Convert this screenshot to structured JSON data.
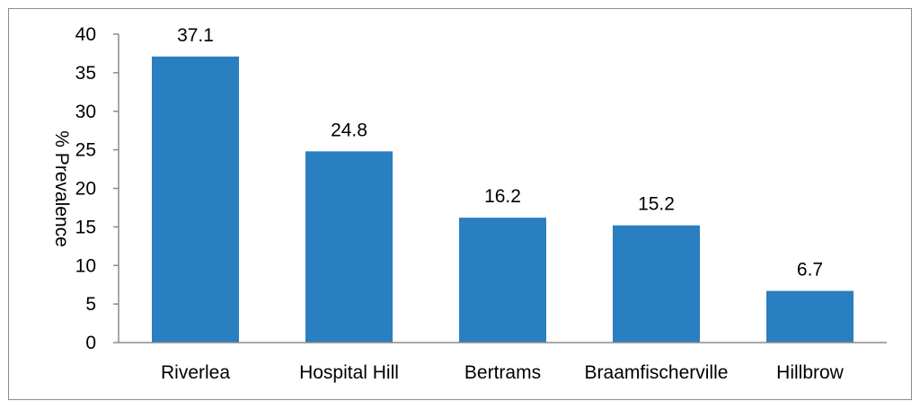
{
  "chart_data": {
    "type": "bar",
    "title": "",
    "xlabel": "",
    "ylabel": "% Prevalence",
    "categories": [
      "Riverlea",
      "Hospital Hill",
      "Bertrams",
      "Braamfischerville",
      "Hillbrow"
    ],
    "values": [
      37.1,
      24.8,
      16.2,
      15.2,
      6.7
    ],
    "data_labels": [
      "37.1",
      "24.8",
      "16.2",
      "15.2",
      "6.7"
    ],
    "y_ticks": [
      0,
      5,
      10,
      15,
      20,
      25,
      30,
      35,
      40
    ],
    "ylim": [
      0,
      40
    ],
    "grid": false,
    "legend": "none",
    "bar_color": "#2a7fc1"
  }
}
